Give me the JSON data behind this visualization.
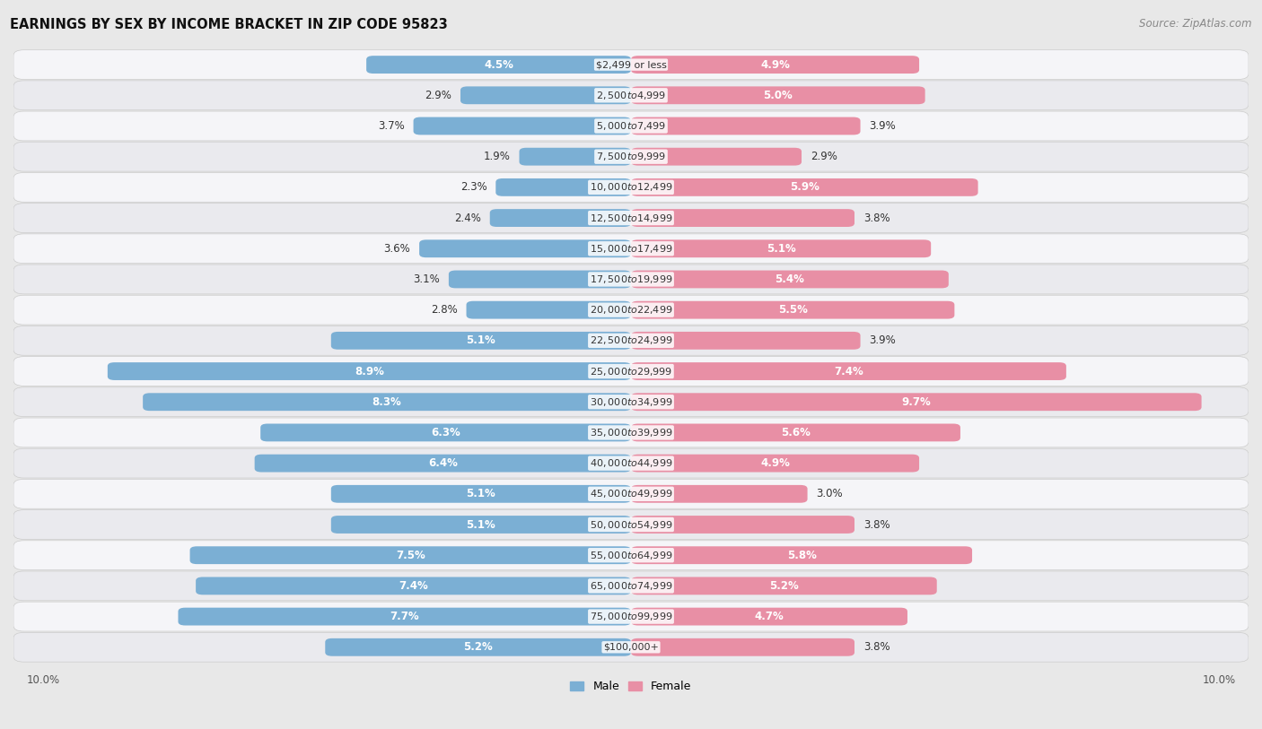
{
  "title": "EARNINGS BY SEX BY INCOME BRACKET IN ZIP CODE 95823",
  "source": "Source: ZipAtlas.com",
  "categories": [
    "$2,499 or less",
    "$2,500 to $4,999",
    "$5,000 to $7,499",
    "$7,500 to $9,999",
    "$10,000 to $12,499",
    "$12,500 to $14,999",
    "$15,000 to $17,499",
    "$17,500 to $19,999",
    "$20,000 to $22,499",
    "$22,500 to $24,999",
    "$25,000 to $29,999",
    "$30,000 to $34,999",
    "$35,000 to $39,999",
    "$40,000 to $44,999",
    "$45,000 to $49,999",
    "$50,000 to $54,999",
    "$55,000 to $64,999",
    "$65,000 to $74,999",
    "$75,000 to $99,999",
    "$100,000+"
  ],
  "male_values": [
    4.5,
    2.9,
    3.7,
    1.9,
    2.3,
    2.4,
    3.6,
    3.1,
    2.8,
    5.1,
    8.9,
    8.3,
    6.3,
    6.4,
    5.1,
    5.1,
    7.5,
    7.4,
    7.7,
    5.2
  ],
  "female_values": [
    4.9,
    5.0,
    3.9,
    2.9,
    5.9,
    3.8,
    5.1,
    5.4,
    5.5,
    3.9,
    7.4,
    9.7,
    5.6,
    4.9,
    3.0,
    3.8,
    5.8,
    5.2,
    4.7,
    3.8
  ],
  "male_color": "#7bafd4",
  "female_color": "#e88fa5",
  "axis_max": 10.0,
  "bg_color": "#e8e8e8",
  "row_color_odd": "#f5f5f8",
  "row_color_even": "#eaeaee",
  "title_fontsize": 10.5,
  "source_fontsize": 8.5,
  "label_fontsize": 8.5,
  "category_fontsize": 8.0,
  "legend_fontsize": 9,
  "axis_label_fontsize": 8.5,
  "label_inside_threshold": 4.0
}
